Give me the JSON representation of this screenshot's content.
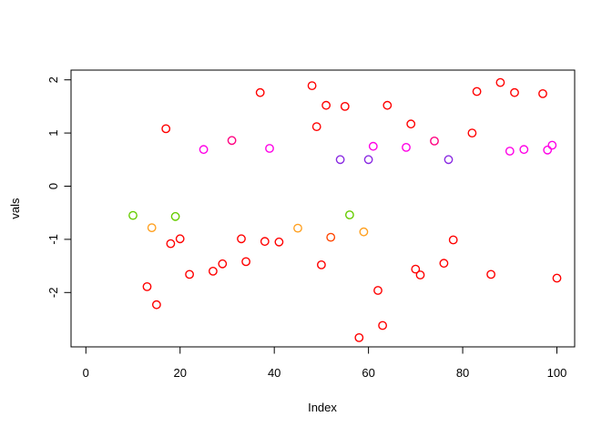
{
  "figure": {
    "background": "#ffffff",
    "plot_background": "#ffffff",
    "box_color": "#000000"
  },
  "chart_data": {
    "type": "scatter",
    "title": "",
    "xlabel": "Index",
    "ylabel": "vals",
    "xlim": [
      -3,
      104
    ],
    "ylim": [
      -3.0,
      2.18
    ],
    "x_ticks": [
      "0",
      "20",
      "40",
      "60",
      "80",
      "100"
    ],
    "x_tick_values": [
      0,
      20,
      40,
      60,
      80,
      100
    ],
    "y_ticks": [
      "-2",
      "-1",
      "0",
      "1",
      "2"
    ],
    "y_tick_values": [
      -2,
      -1,
      0,
      1,
      2
    ],
    "grid": false,
    "legend_position": "none",
    "marker": "open-circle",
    "palette": {
      "red": "#FF0000",
      "orange": "#FFA020",
      "orangered": "#FF4500",
      "green": "#66CC00",
      "purple": "#8A2BE2",
      "magenta": "#FF00E6",
      "deeppink": "#FF0080"
    },
    "points": [
      {
        "x": 10,
        "y": -0.55,
        "color": "#66CC00"
      },
      {
        "x": 13,
        "y": -1.89,
        "color": "#FF0000"
      },
      {
        "x": 14,
        "y": -0.78,
        "color": "#FFA020"
      },
      {
        "x": 15,
        "y": -2.23,
        "color": "#FF0000"
      },
      {
        "x": 17,
        "y": 1.08,
        "color": "#FF0000"
      },
      {
        "x": 18,
        "y": -1.08,
        "color": "#FF0000"
      },
      {
        "x": 19,
        "y": -0.57,
        "color": "#66CC00"
      },
      {
        "x": 20,
        "y": -0.99,
        "color": "#FF0000"
      },
      {
        "x": 22,
        "y": -1.66,
        "color": "#FF0000"
      },
      {
        "x": 25,
        "y": 0.69,
        "color": "#FF00E6"
      },
      {
        "x": 27,
        "y": -1.6,
        "color": "#FF0000"
      },
      {
        "x": 29,
        "y": -1.46,
        "color": "#FF0000"
      },
      {
        "x": 31,
        "y": 0.86,
        "color": "#FF0080"
      },
      {
        "x": 33,
        "y": -0.99,
        "color": "#FF0000"
      },
      {
        "x": 34,
        "y": -1.42,
        "color": "#FF0000"
      },
      {
        "x": 37,
        "y": 1.76,
        "color": "#FF0000"
      },
      {
        "x": 38,
        "y": -1.04,
        "color": "#FF0000"
      },
      {
        "x": 39,
        "y": 0.71,
        "color": "#FF00E6"
      },
      {
        "x": 41,
        "y": -1.05,
        "color": "#FF0000"
      },
      {
        "x": 45,
        "y": -0.79,
        "color": "#FFA020"
      },
      {
        "x": 48,
        "y": 1.89,
        "color": "#FF0000"
      },
      {
        "x": 49,
        "y": 1.12,
        "color": "#FF0000"
      },
      {
        "x": 50,
        "y": -1.48,
        "color": "#FF0000"
      },
      {
        "x": 51,
        "y": 1.52,
        "color": "#FF0000"
      },
      {
        "x": 52,
        "y": -0.96,
        "color": "#FF4500"
      },
      {
        "x": 54,
        "y": 0.5,
        "color": "#8A2BE2"
      },
      {
        "x": 55,
        "y": 1.5,
        "color": "#FF0000"
      },
      {
        "x": 56,
        "y": -0.54,
        "color": "#66CC00"
      },
      {
        "x": 58,
        "y": -2.85,
        "color": "#FF0000"
      },
      {
        "x": 59,
        "y": -0.86,
        "color": "#FFA020"
      },
      {
        "x": 60,
        "y": 0.5,
        "color": "#8A2BE2"
      },
      {
        "x": 61,
        "y": 0.75,
        "color": "#FF00E6"
      },
      {
        "x": 62,
        "y": -1.96,
        "color": "#FF0000"
      },
      {
        "x": 63,
        "y": -2.62,
        "color": "#FF0000"
      },
      {
        "x": 64,
        "y": 1.52,
        "color": "#FF0000"
      },
      {
        "x": 68,
        "y": 0.73,
        "color": "#FF00E6"
      },
      {
        "x": 69,
        "y": 1.17,
        "color": "#FF0000"
      },
      {
        "x": 70,
        "y": -1.56,
        "color": "#FF0000"
      },
      {
        "x": 71,
        "y": -1.67,
        "color": "#FF0000"
      },
      {
        "x": 74,
        "y": 0.85,
        "color": "#FF0080"
      },
      {
        "x": 76,
        "y": -1.45,
        "color": "#FF0000"
      },
      {
        "x": 77,
        "y": 0.5,
        "color": "#8A2BE2"
      },
      {
        "x": 78,
        "y": -1.01,
        "color": "#FF0000"
      },
      {
        "x": 82,
        "y": 1.0,
        "color": "#FF0000"
      },
      {
        "x": 83,
        "y": 1.78,
        "color": "#FF0000"
      },
      {
        "x": 86,
        "y": -1.66,
        "color": "#FF0000"
      },
      {
        "x": 88,
        "y": 1.95,
        "color": "#FF0000"
      },
      {
        "x": 90,
        "y": 0.66,
        "color": "#FF00E6"
      },
      {
        "x": 91,
        "y": 1.76,
        "color": "#FF0000"
      },
      {
        "x": 93,
        "y": 0.69,
        "color": "#FF00E6"
      },
      {
        "x": 97,
        "y": 1.74,
        "color": "#FF0000"
      },
      {
        "x": 98,
        "y": 0.68,
        "color": "#FF00E6"
      },
      {
        "x": 99,
        "y": 0.77,
        "color": "#FF00E6"
      },
      {
        "x": 100,
        "y": -1.73,
        "color": "#FF0000"
      }
    ]
  }
}
